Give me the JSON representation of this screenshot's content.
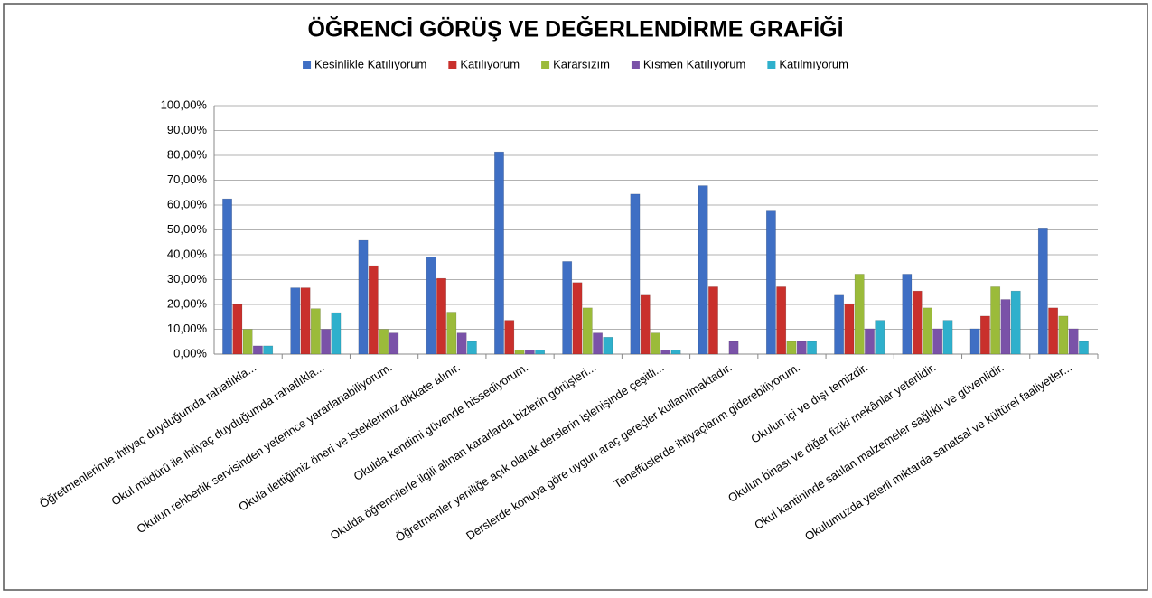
{
  "chart_data": {
    "type": "bar",
    "title": "ÖĞRENCİ GÖRÜŞ VE DEĞERLENDİRME GRAFİĞİ",
    "categories": [
      "Öğretmenlerimle ihtiyaç duyduğumda rahatlıkla...",
      "Okul müdürü ile ihtiyaç duyduğumda rahatlıkla...",
      "Okulun rehberlik servisinden yeterince yararlanabiliyorum.",
      "Okula ilettiğimiz öneri ve isteklerimiz dikkate alınır.",
      "Okulda kendimi güvende hissediyorum.",
      "Okulda öğrencilerle ilgili alınan kararlarda bizlerin görüşleri...",
      "Öğretmenler yeniliğe açık olarak derslerin işlenişinde çeşitli...",
      "Derslerde konuya göre uygun araç gereçler kullanılmaktadır.",
      "Teneffüslerde ihtiyaçlarım giderebiliyorum.",
      "Okulun içi ve dışı temizdir.",
      "Okulun binası ve diğer fiziki mekânlar yeterlidir.",
      "Okul kantininde satılan malzemeler sağlıklı ve güvenlidir.",
      "Okulumuzda yeterli miktarda sanatsal ve kültürel faaliyetler..."
    ],
    "series": [
      {
        "name": "Kesinlikle Katılıyorum",
        "color": "#3f6fc4",
        "values": [
          62.5,
          26.7,
          45.8,
          39,
          81.4,
          37.3,
          64.4,
          67.8,
          57.6,
          23.7,
          32.2,
          10.2,
          50.8
        ]
      },
      {
        "name": "Katılıyorum",
        "color": "#c9302c",
        "values": [
          20,
          26.7,
          35.6,
          30.5,
          13.6,
          28.8,
          23.7,
          27.1,
          27.1,
          20.3,
          25.4,
          15.3,
          18.6
        ]
      },
      {
        "name": "Kararsızım",
        "color": "#9bbb3a",
        "values": [
          10,
          18.3,
          10,
          16.9,
          1.7,
          18.6,
          8.5,
          0,
          5.1,
          32.2,
          18.6,
          27.1,
          15.3
        ]
      },
      {
        "name": "Kısmen Katılıyorum",
        "color": "#7a52a8",
        "values": [
          3.3,
          10,
          8.5,
          8.5,
          1.7,
          8.5,
          1.7,
          5.1,
          5.1,
          10.2,
          10.2,
          22,
          10.2
        ]
      },
      {
        "name": "Katılmıyorum",
        "color": "#2fb0cc",
        "values": [
          3.3,
          16.7,
          0,
          5.1,
          1.7,
          6.8,
          1.7,
          0,
          5.1,
          13.6,
          13.6,
          25.4,
          5.1
        ]
      }
    ],
    "ylim": [
      0,
      100
    ],
    "yticks": [
      {
        "value": 0,
        "label": "0,00%"
      },
      {
        "value": 10,
        "label": "10,00%"
      },
      {
        "value": 20,
        "label": "20,00%"
      },
      {
        "value": 30,
        "label": "30,00%"
      },
      {
        "value": 40,
        "label": "40,00%"
      },
      {
        "value": 50,
        "label": "50,00%"
      },
      {
        "value": 60,
        "label": "60,00%"
      },
      {
        "value": 70,
        "label": "70,00%"
      },
      {
        "value": 80,
        "label": "80,00%"
      },
      {
        "value": 90,
        "label": "90,00%"
      },
      {
        "value": 100,
        "label": "100,00%"
      }
    ],
    "grid": true,
    "legend": "top"
  }
}
